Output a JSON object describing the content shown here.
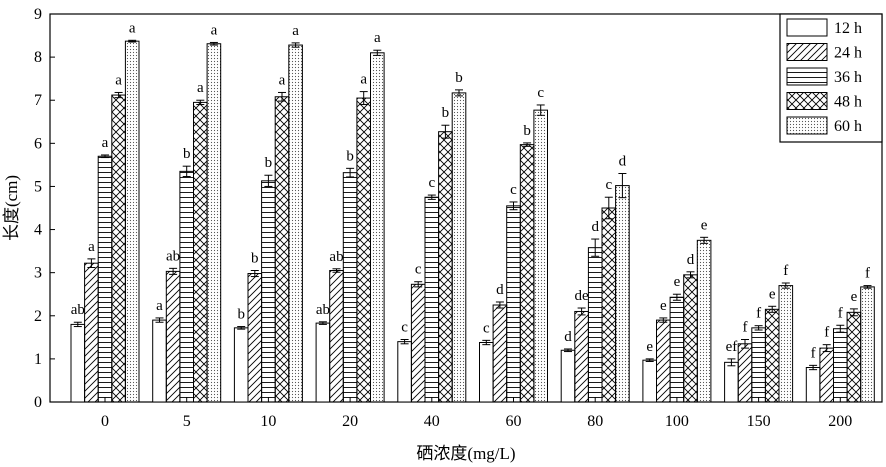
{
  "chart_data": {
    "type": "bar",
    "title": "",
    "xlabel": "硒浓度(mg/L)",
    "ylabel": "长度(cm)",
    "ylim": [
      0,
      9
    ],
    "yticks": [
      "0",
      "1",
      "2",
      "3",
      "4",
      "5",
      "6",
      "7",
      "8",
      "9"
    ],
    "categories": [
      "0",
      "5",
      "10",
      "20",
      "40",
      "60",
      "80",
      "100",
      "150",
      "200"
    ],
    "legend_position": "top-right",
    "grid": false,
    "series": [
      {
        "name": "12 h",
        "pattern": "blank",
        "values": [
          1.8,
          1.9,
          1.72,
          1.83,
          1.4,
          1.38,
          1.2,
          0.97,
          0.92,
          0.8
        ],
        "errors": [
          0.05,
          0.05,
          0.03,
          0.03,
          0.05,
          0.05,
          0.03,
          0.03,
          0.08,
          0.05
        ],
        "labels": [
          "ab",
          "a",
          "b",
          "ab",
          "c",
          "c",
          "d",
          "e",
          "ef",
          "f"
        ]
      },
      {
        "name": "24 h",
        "pattern": "diagonal",
        "values": [
          3.22,
          3.03,
          2.98,
          3.05,
          2.73,
          2.25,
          2.1,
          1.9,
          1.35,
          1.25
        ],
        "errors": [
          0.1,
          0.07,
          0.07,
          0.04,
          0.06,
          0.07,
          0.08,
          0.05,
          0.1,
          0.08
        ],
        "labels": [
          "a",
          "ab",
          "b",
          "ab",
          "c",
          "d",
          "de",
          "e",
          "f",
          "f"
        ]
      },
      {
        "name": "36 h",
        "pattern": "horizontal",
        "values": [
          5.7,
          5.35,
          5.13,
          5.32,
          4.75,
          4.55,
          3.58,
          2.43,
          1.72,
          1.7
        ],
        "errors": [
          0.03,
          0.12,
          0.13,
          0.1,
          0.05,
          0.09,
          0.2,
          0.07,
          0.05,
          0.08
        ],
        "labels": [
          "a",
          "b",
          "b",
          "b",
          "c",
          "c",
          "d",
          "e",
          "f",
          "f"
        ]
      },
      {
        "name": "48 h",
        "pattern": "crosshatch",
        "values": [
          7.12,
          6.95,
          7.08,
          7.05,
          6.27,
          5.97,
          4.5,
          2.95,
          2.15,
          2.08
        ],
        "errors": [
          0.06,
          0.05,
          0.1,
          0.15,
          0.15,
          0.04,
          0.25,
          0.07,
          0.07,
          0.08
        ],
        "labels": [
          "a",
          "a",
          "a",
          "a",
          "b",
          "b",
          "c",
          "d",
          "e",
          "e"
        ]
      },
      {
        "name": "60 h",
        "pattern": "dotted",
        "values": [
          8.37,
          8.31,
          8.28,
          8.1,
          7.17,
          6.77,
          5.02,
          3.75,
          2.7,
          2.67
        ],
        "errors": [
          0.02,
          0.03,
          0.05,
          0.06,
          0.07,
          0.12,
          0.28,
          0.07,
          0.06,
          0.03
        ],
        "labels": [
          "a",
          "a",
          "a",
          "a",
          "b",
          "c",
          "d",
          "e",
          "f",
          "f"
        ]
      }
    ]
  }
}
